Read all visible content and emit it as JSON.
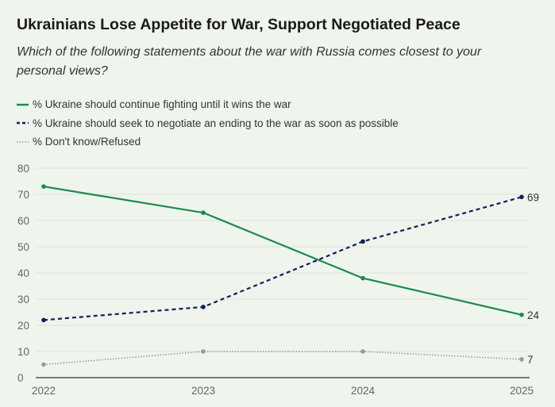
{
  "chart_data": {
    "type": "line",
    "title": "Ukrainians Lose Appetite for War, Support Negotiated Peace",
    "subtitle": "Which of the following statements about the war with Russia comes closest to your personal views?",
    "x": [
      "2022",
      "2023",
      "2024",
      "2025"
    ],
    "ylim": [
      0,
      80
    ],
    "yticks": [
      0,
      10,
      20,
      30,
      40,
      50,
      60,
      70,
      80
    ],
    "grid": true,
    "legend": "top-left",
    "series": [
      {
        "name": "% Ukraine should continue fighting until it wins the war",
        "values": [
          73,
          63,
          38,
          24
        ],
        "color": "#1b8a4f",
        "style": "solid",
        "end_label": "24"
      },
      {
        "name": "% Ukraine should seek to negotiate an ending to the war as soon as possible",
        "values": [
          22,
          27,
          52,
          69
        ],
        "color": "#0e1f5b",
        "style": "dashed",
        "end_label": "69"
      },
      {
        "name": "% Don't know/Refused",
        "values": [
          5,
          10,
          10,
          7
        ],
        "color": "#999999",
        "style": "dotted",
        "end_label": "7"
      }
    ]
  }
}
